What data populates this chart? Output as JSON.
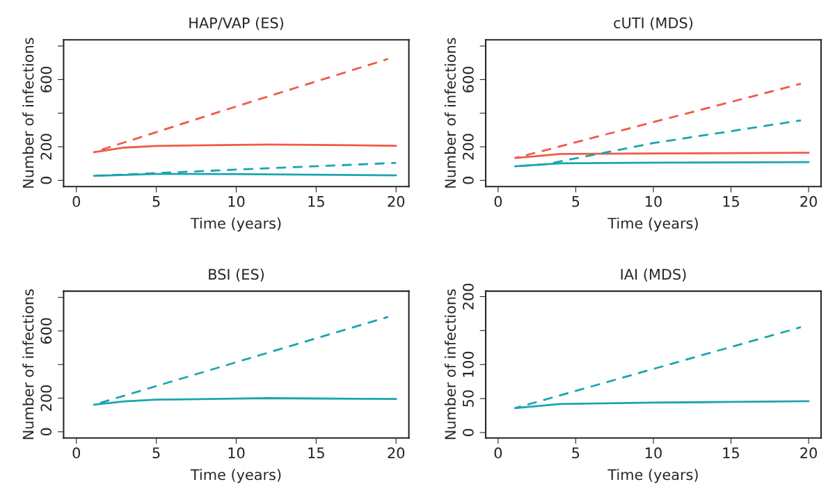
{
  "chart_data": [
    {
      "type": "line",
      "title": "HAP/VAP (ES)",
      "xlabel": "Time (years)",
      "ylabel": "Number of infections",
      "xlim": [
        -0.8,
        20.8
      ],
      "xticks": [
        0,
        5,
        10,
        15,
        20
      ],
      "ylim": [
        -37,
        837
      ],
      "yticks": [
        0,
        200,
        {
          "value": 400,
          "label": null
        },
        600,
        {
          "value": 800,
          "label": null
        }
      ],
      "grid": false,
      "legend": false,
      "series": [
        {
          "color": "#ef5a45",
          "line_style": "solid",
          "x": [
            1.1,
            3,
            5,
            10,
            12,
            15,
            20
          ],
          "values": [
            168,
            195,
            205,
            211,
            213,
            211,
            206
          ]
        },
        {
          "color": "#ef5a45",
          "line_style": "dashed",
          "x": [
            1.1,
            10,
            19.5
          ],
          "values": [
            168,
            440,
            723
          ]
        },
        {
          "color": "#1ba5ae",
          "line_style": "solid",
          "x": [
            1.1,
            5,
            10,
            20
          ],
          "values": [
            27,
            38,
            37,
            30
          ]
        },
        {
          "color": "#1ba5ae",
          "line_style": "dashed",
          "x": [
            1.1,
            10,
            20
          ],
          "values": [
            27,
            64,
            104
          ]
        }
      ]
    },
    {
      "type": "line",
      "title": "cUTI (MDS)",
      "xlabel": "Time (years)",
      "ylabel": "Number of infections",
      "xlim": [
        -0.8,
        20.8
      ],
      "xticks": [
        0,
        5,
        10,
        15,
        20
      ],
      "ylim": [
        -37,
        837
      ],
      "yticks": [
        0,
        200,
        {
          "value": 400,
          "label": null
        },
        600,
        {
          "value": 800,
          "label": null
        }
      ],
      "grid": false,
      "legend": false,
      "series": [
        {
          "color": "#ef5a45",
          "line_style": "solid",
          "x": [
            1.1,
            4,
            10,
            20
          ],
          "values": [
            133,
            157,
            160,
            164
          ]
        },
        {
          "color": "#ef5a45",
          "line_style": "dashed",
          "x": [
            1.1,
            19.5
          ],
          "values": [
            133,
            575
          ]
        },
        {
          "color": "#1ba5ae",
          "line_style": "solid",
          "x": [
            1.1,
            4,
            10,
            20
          ],
          "values": [
            84,
            101,
            105,
            109
          ]
        },
        {
          "color": "#1ba5ae",
          "line_style": "dashed",
          "x": [
            1.1,
            3,
            10,
            19.5
          ],
          "values": [
            84,
            95,
            222,
            357
          ]
        }
      ]
    },
    {
      "type": "line",
      "title": "BSI (ES)",
      "xlabel": "Time (years)",
      "ylabel": "Number of infections",
      "xlim": [
        -0.8,
        20.8
      ],
      "xticks": [
        0,
        5,
        10,
        15,
        20
      ],
      "ylim": [
        -37,
        837
      ],
      "yticks": [
        0,
        200,
        {
          "value": 400,
          "label": null
        },
        600,
        {
          "value": 800,
          "label": null
        }
      ],
      "grid": false,
      "legend": false,
      "series": [
        {
          "color": "#1ba5ae",
          "line_style": "solid",
          "x": [
            1.1,
            3,
            5,
            10,
            12,
            15,
            20
          ],
          "values": [
            161,
            181,
            191,
            197,
            200,
            198,
            195
          ]
        },
        {
          "color": "#1ba5ae",
          "line_style": "dashed",
          "x": [
            1.1,
            19.5
          ],
          "values": [
            161,
            684
          ]
        }
      ]
    },
    {
      "type": "line",
      "title": "IAI (MDS)",
      "xlabel": "Time (years)",
      "ylabel": "Number of infections",
      "xlim": [
        -0.8,
        20.8
      ],
      "xticks": [
        0,
        5,
        10,
        15,
        20
      ],
      "ylim": [
        -8,
        208
      ],
      "yticks": [
        0,
        50,
        100,
        {
          "value": 150,
          "label": null
        },
        200
      ],
      "grid": false,
      "legend": false,
      "series": [
        {
          "color": "#1ba5ae",
          "line_style": "solid",
          "x": [
            1.1,
            4,
            10,
            15,
            20
          ],
          "values": [
            36,
            42,
            44,
            45,
            46
          ]
        },
        {
          "color": "#1ba5ae",
          "line_style": "dashed",
          "x": [
            1.1,
            19.5
          ],
          "values": [
            36,
            155
          ]
        }
      ]
    }
  ]
}
